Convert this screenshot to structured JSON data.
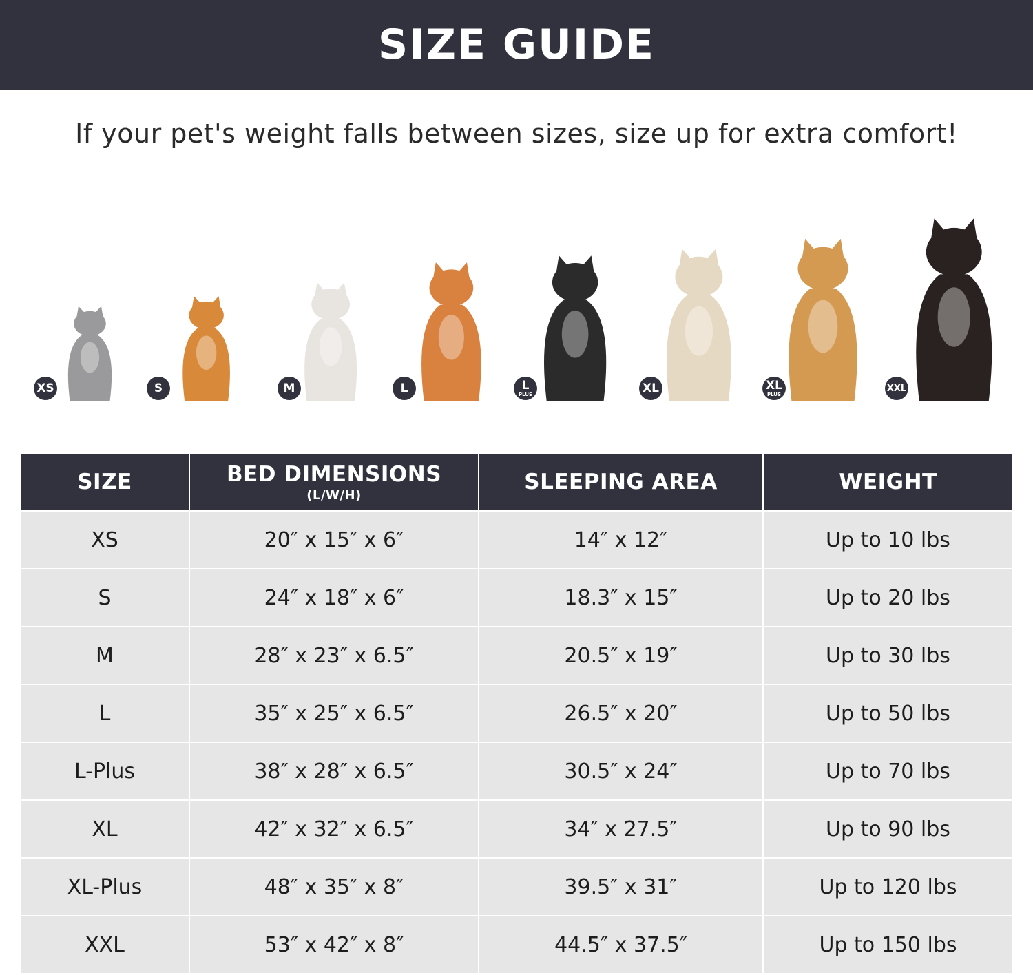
{
  "header": {
    "title": "SIZE GUIDE"
  },
  "subtitle": "If your pet's weight falls between sizes, size up for extra comfort!",
  "pets": [
    {
      "badge": "XS",
      "plus": "",
      "animal": "cat",
      "color": "#9a9a9c"
    },
    {
      "badge": "S",
      "plus": "",
      "animal": "pomeranian",
      "color": "#d9893a"
    },
    {
      "badge": "M",
      "plus": "",
      "animal": "french-bulldog",
      "color": "#e8e4e0"
    },
    {
      "badge": "L",
      "plus": "",
      "animal": "shiba-inu",
      "color": "#d9823f"
    },
    {
      "badge": "L",
      "plus": "PLUS",
      "animal": "border-collie",
      "color": "#2b2b2b"
    },
    {
      "badge": "XL",
      "plus": "",
      "animal": "labrador",
      "color": "#e6d9c3"
    },
    {
      "badge": "XL",
      "plus": "PLUS",
      "animal": "golden-retriever",
      "color": "#d49a52"
    },
    {
      "badge": "XXL",
      "plus": "",
      "animal": "doberman",
      "color": "#2a2220"
    }
  ],
  "table": {
    "headers": {
      "size": "SIZE",
      "dimensions": "BED DIMENSIONS",
      "dimensions_sub": "(L/W/H)",
      "area": "SLEEPING AREA",
      "weight": "WEIGHT"
    },
    "rows": [
      {
        "size": "XS",
        "dimensions": "20″ x 15″ x 6″",
        "area": "14″ x 12″",
        "weight": "Up to 10 lbs"
      },
      {
        "size": "S",
        "dimensions": "24″ x 18″ x 6″",
        "area": "18.3″ x 15″",
        "weight": "Up to 20 lbs"
      },
      {
        "size": "M",
        "dimensions": "28″ x 23″ x 6.5″",
        "area": "20.5″ x 19″",
        "weight": "Up to 30 lbs"
      },
      {
        "size": "L",
        "dimensions": "35″ x 25″ x 6.5″",
        "area": "26.5″ x 20″",
        "weight": "Up to 50 lbs"
      },
      {
        "size": "L-Plus",
        "dimensions": "38″ x 28″ x 6.5″",
        "area": "30.5″ x 24″",
        "weight": "Up to 70 lbs"
      },
      {
        "size": "XL",
        "dimensions": "42″ x 32″ x 6.5″",
        "area": "34″ x 27.5″",
        "weight": "Up to 90 lbs"
      },
      {
        "size": "XL-Plus",
        "dimensions": "48″ x 35″ x 8″",
        "area": "39.5″ x 31″",
        "weight": "Up to 120 lbs"
      },
      {
        "size": "XXL",
        "dimensions": "53″ x 42″ x 8″",
        "area": "44.5″ x 37.5″",
        "weight": "Up to 150 lbs"
      }
    ]
  }
}
